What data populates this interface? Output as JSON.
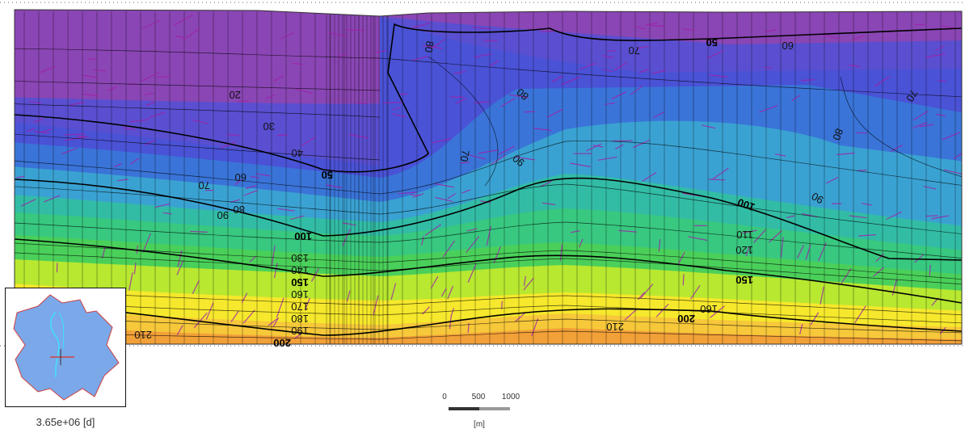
{
  "contour_levels": [
    "20",
    "30",
    "40",
    "50",
    "60",
    "70",
    "80",
    "90",
    "100",
    "110",
    "120",
    "130",
    "140",
    "150",
    "160",
    "170",
    "180",
    "190",
    "200",
    "210"
  ],
  "major_levels": [
    "50",
    "100",
    "150",
    "200"
  ],
  "time_label": "3.65e+06 [d]",
  "scale_bar": {
    "ticks": [
      "0",
      "500",
      "1000"
    ],
    "unit": "[m]"
  },
  "colors": {
    "purple": "#8a46b4",
    "blue": "#4a52d6",
    "light_blue": "#3aa2d2",
    "teal": "#32bca6",
    "green": "#4ad05a",
    "yellow_green": "#b8e830",
    "yellow": "#f6e82c",
    "orange": "#f2a038",
    "contour_line": "#000000",
    "velocity_arrow": "#a020a8",
    "mesh_line": "#000000",
    "inset_domain": "#7aa8e8",
    "inset_boundary": "#d04040",
    "inset_river": "#40e0ff"
  }
}
